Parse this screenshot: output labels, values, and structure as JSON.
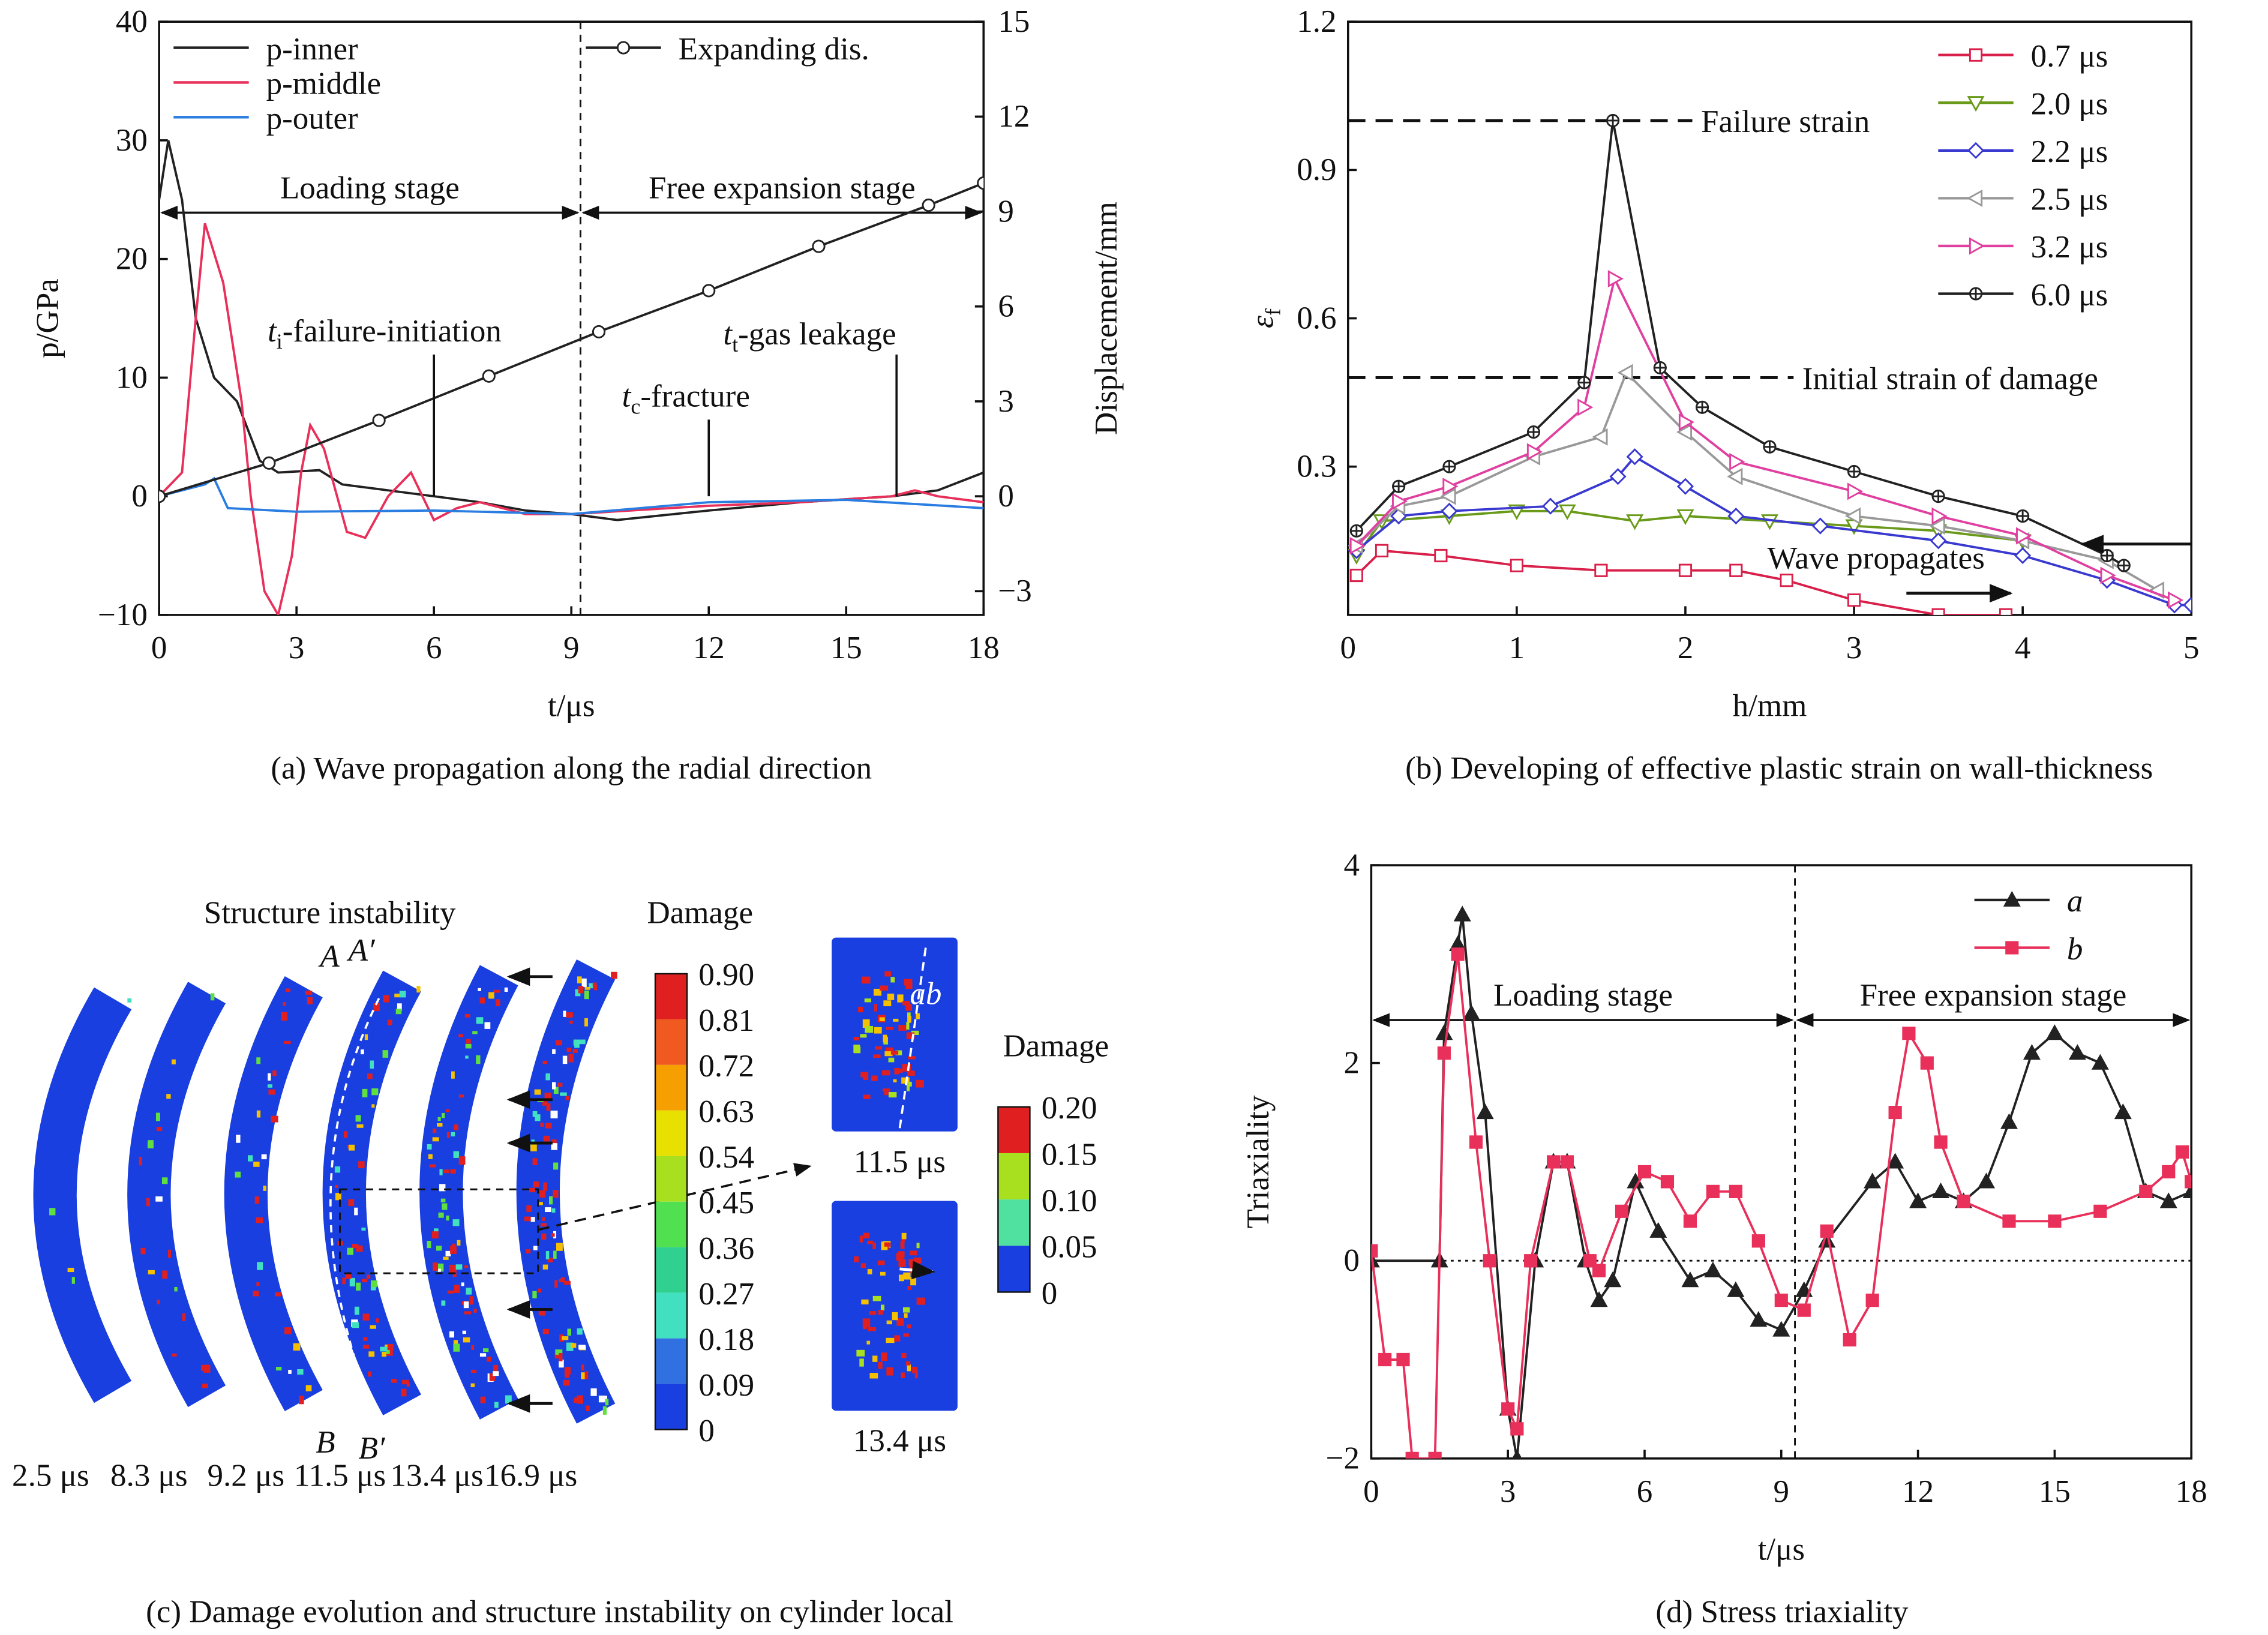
{
  "chart_data": [
    {
      "type": "line",
      "caption": "(a) Wave propagation along the radial direction",
      "xlabel": "t/μs",
      "ylabel": "p/GPa",
      "y2label": "Displacement/mm",
      "xlim": [
        0,
        18
      ],
      "xticks": [
        0,
        3,
        6,
        9,
        12,
        15,
        18
      ],
      "ylim": [
        -10,
        40
      ],
      "yticks": [
        {
          "value": -10,
          "label": "−10"
        },
        0,
        10,
        20,
        30,
        40
      ],
      "y2lim": [
        -3.75,
        15
      ],
      "y2ticks": [
        {
          "value": -3,
          "label": "−3"
        },
        0,
        3,
        6,
        9,
        12,
        15
      ],
      "stage_boundary": 9.2,
      "stages": [
        "Loading stage",
        "Free expansion stage"
      ],
      "annotations": [
        {
          "t": "t",
          "sub": "i",
          "text": "-failure-initiation",
          "at": 6.0
        },
        {
          "t": "t",
          "sub": "c",
          "text": "-fracture",
          "at": 12.0
        },
        {
          "t": "t",
          "sub": "t",
          "text": "-gas leakage",
          "at": 16.1
        }
      ],
      "series": [
        {
          "name": "p-inner",
          "color": "#222222",
          "x": [
            0,
            0.2,
            0.5,
            0.8,
            1.2,
            1.7,
            2.2,
            2.6,
            3.5,
            4,
            5,
            6,
            7,
            8,
            9,
            10,
            12,
            14,
            16,
            17,
            18
          ],
          "values": [
            25,
            30,
            25,
            15,
            10,
            8,
            3,
            2,
            2.2,
            1,
            0.5,
            0,
            -0.5,
            -1.2,
            -1.5,
            -2,
            -1.2,
            -0.5,
            0,
            0.5,
            2
          ]
        },
        {
          "name": "p-middle",
          "color": "#e8305a",
          "x": [
            0,
            0.5,
            0.8,
            1.0,
            1.4,
            1.8,
            2.0,
            2.3,
            2.6,
            2.9,
            3.1,
            3.3,
            3.6,
            4.1,
            4.5,
            5,
            5.5,
            6,
            6.5,
            7,
            8,
            9,
            12,
            14,
            16,
            16.5,
            17,
            18
          ],
          "values": [
            0,
            2,
            15,
            23,
            18,
            8,
            0,
            -8,
            -10,
            -5,
            2,
            6,
            4,
            -3,
            -3.5,
            0,
            2,
            -2,
            -1,
            -0.5,
            -1.5,
            -1.5,
            -0.8,
            -0.5,
            0,
            0.5,
            0,
            -0.5
          ]
        },
        {
          "name": "p-outer",
          "color": "#2a7de1",
          "x": [
            0,
            1,
            1.2,
            1.5,
            3,
            6,
            9,
            12,
            15,
            18
          ],
          "values": [
            0,
            1,
            1.5,
            -1,
            -1.3,
            -1.2,
            -1.5,
            -0.5,
            -0.3,
            -1
          ]
        },
        {
          "name": "Expanding dis.",
          "color": "#222222",
          "axis": "y2",
          "marker": "circle",
          "x": [
            0,
            2.4,
            4.8,
            7.2,
            9.6,
            12,
            14.4,
            16.8,
            18
          ],
          "values": [
            0,
            1.05,
            2.4,
            3.8,
            5.2,
            6.5,
            7.9,
            9.2,
            9.9
          ]
        }
      ]
    },
    {
      "type": "line",
      "caption": "(b) Developing of effective plastic strain on wall-thickness",
      "xlabel": "h/mm",
      "ylabel": "ε",
      "ylabel_sub": "f",
      "xlim": [
        0,
        5
      ],
      "xticks": [
        0,
        1,
        2,
        3,
        4,
        5
      ],
      "ylim": [
        0,
        1.2
      ],
      "yticks": [
        0.3,
        0.6,
        0.9,
        1.2
      ],
      "hlines": [
        {
          "value": 1.0,
          "label": "Failure strain"
        },
        {
          "value": 0.48,
          "label": "Initial strain of damage"
        }
      ],
      "annotations": [
        {
          "text": "Wave propagates"
        }
      ],
      "series": [
        {
          "name": "0.7 μs",
          "color": "#d8204a",
          "marker": "square",
          "x": [
            0.05,
            0.2,
            0.55,
            1.0,
            1.5,
            2.0,
            2.3,
            2.6,
            3.0,
            3.5,
            3.9
          ],
          "values": [
            0.08,
            0.13,
            0.12,
            0.1,
            0.09,
            0.09,
            0.09,
            0.07,
            0.03,
            0.0,
            0.0
          ]
        },
        {
          "name": "2.0 μs",
          "color": "#6a9a1a",
          "marker": "triangle-down",
          "x": [
            0.05,
            0.2,
            0.6,
            1.0,
            1.3,
            1.7,
            2.0,
            2.5,
            3.0,
            3.5,
            4.0
          ],
          "values": [
            0.12,
            0.19,
            0.2,
            0.21,
            0.21,
            0.19,
            0.2,
            0.19,
            0.18,
            0.17,
            0.15
          ]
        },
        {
          "name": "2.2 μs",
          "color": "#3a3ad0",
          "marker": "diamond",
          "x": [
            0.05,
            0.3,
            0.6,
            1.2,
            1.6,
            1.7,
            2.0,
            2.3,
            2.8,
            3.5,
            4.0,
            4.5,
            4.9,
            5.0
          ],
          "values": [
            0.13,
            0.2,
            0.21,
            0.22,
            0.28,
            0.32,
            0.26,
            0.2,
            0.18,
            0.15,
            0.12,
            0.07,
            0.02,
            0.02
          ]
        },
        {
          "name": "2.5 μs",
          "color": "#999999",
          "marker": "triangle-left",
          "x": [
            0.05,
            0.3,
            0.6,
            1.1,
            1.5,
            1.65,
            2.0,
            2.3,
            3.0,
            3.5,
            4.0,
            4.5,
            4.8
          ],
          "values": [
            0.14,
            0.22,
            0.24,
            0.32,
            0.36,
            0.49,
            0.37,
            0.28,
            0.2,
            0.18,
            0.15,
            0.11,
            0.05
          ]
        },
        {
          "name": "3.2 μs",
          "color": "#e040a0",
          "marker": "triangle-right",
          "x": [
            0.05,
            0.3,
            0.6,
            1.1,
            1.4,
            1.58,
            2.0,
            2.3,
            3.0,
            3.5,
            4.0,
            4.5,
            4.9
          ],
          "values": [
            0.14,
            0.23,
            0.26,
            0.33,
            0.42,
            0.68,
            0.39,
            0.31,
            0.25,
            0.2,
            0.16,
            0.08,
            0.03
          ]
        },
        {
          "name": "6.0 μs",
          "color": "#222222",
          "marker": "circle-plus",
          "x": [
            0.05,
            0.3,
            0.6,
            1.1,
            1.4,
            1.57,
            1.85,
            2.1,
            2.5,
            3.0,
            3.5,
            4.0,
            4.5,
            4.6
          ],
          "values": [
            0.17,
            0.26,
            0.3,
            0.37,
            0.47,
            1.0,
            0.5,
            0.42,
            0.34,
            0.29,
            0.24,
            0.2,
            0.12,
            0.1
          ]
        }
      ]
    },
    {
      "type": "line",
      "caption": "(d) Stress triaxiality",
      "xlabel": "t/μs",
      "ylabel": "Triaxiality",
      "xlim": [
        0,
        18
      ],
      "xticks": [
        0,
        3,
        6,
        9,
        12,
        15,
        18
      ],
      "ylim": [
        -2,
        4
      ],
      "yticks": [
        {
          "value": -2,
          "label": "−2"
        },
        0,
        2,
        4
      ],
      "zero_line": true,
      "stage_boundary": 9.3,
      "stages": [
        "Loading stage",
        "Free expansion stage"
      ],
      "series": [
        {
          "name": "a",
          "color": "#222222",
          "marker": "triangle-up",
          "filled": true,
          "x": [
            0,
            1.5,
            1.6,
            1.9,
            2.0,
            2.2,
            2.5,
            3.0,
            3.2,
            3.6,
            4.0,
            4.3,
            4.7,
            5.0,
            5.3,
            5.8,
            6.3,
            7.0,
            7.5,
            8.0,
            8.5,
            9.0,
            9.5,
            10.0,
            11.0,
            11.5,
            12.0,
            12.5,
            13.0,
            13.5,
            14.0,
            14.5,
            15.0,
            15.5,
            16.0,
            16.5,
            17.0,
            17.5,
            18.0
          ],
          "values": [
            0,
            0,
            2.3,
            3.2,
            3.5,
            2.5,
            1.5,
            -1.5,
            -2,
            0,
            1.0,
            1.0,
            0,
            -0.4,
            -0.2,
            0.8,
            0.3,
            -0.2,
            -0.1,
            -0.3,
            -0.6,
            -0.7,
            -0.3,
            0.2,
            0.8,
            1.0,
            0.6,
            0.7,
            0.6,
            0.8,
            1.4,
            2.1,
            2.3,
            2.1,
            2.0,
            1.5,
            0.7,
            0.6,
            0.7
          ]
        },
        {
          "name": "b",
          "color": "#e8305a",
          "marker": "square",
          "filled": true,
          "x": [
            0,
            0.3,
            0.7,
            0.9,
            1.4,
            1.6,
            1.9,
            2.3,
            2.6,
            3.0,
            3.2,
            3.5,
            4.0,
            4.3,
            4.8,
            5.0,
            5.5,
            6.0,
            6.5,
            7.0,
            7.5,
            8.0,
            8.5,
            9.0,
            9.5,
            10.0,
            10.5,
            11.0,
            11.5,
            11.8,
            12.2,
            12.5,
            13.0,
            14.0,
            15.0,
            16.0,
            17.0,
            17.5,
            17.8,
            18.0
          ],
          "values": [
            0.1,
            -1,
            -1,
            -2,
            -2,
            2.1,
            3.1,
            1.2,
            0,
            -1.5,
            -1.7,
            0,
            1.0,
            1.0,
            0,
            -0.1,
            0.5,
            0.9,
            0.8,
            0.4,
            0.7,
            0.7,
            0.2,
            -0.4,
            -0.5,
            0.3,
            -0.8,
            -0.4,
            1.5,
            2.3,
            2.0,
            1.2,
            0.6,
            0.4,
            0.4,
            0.5,
            0.7,
            0.9,
            1.1,
            0.8
          ]
        }
      ]
    }
  ],
  "panel_c": {
    "caption": "(c) Damage evolution and structure instability on cylinder local",
    "title": "Structure instability",
    "labels": [
      "A",
      "A′",
      "B",
      "B′"
    ],
    "times": [
      "2.5 μs",
      "8.3 μs",
      "9.2 μs",
      "11.5 μs",
      "13.4 μs",
      "16.9 μs"
    ],
    "colorbar": {
      "title": "Damage",
      "ticks": [
        "0.90",
        "0.81",
        "0.72",
        "0.63",
        "0.54",
        "0.45",
        "0.36",
        "0.27",
        "0.18",
        "0.09",
        "0"
      ]
    },
    "zoom": {
      "label": "ab",
      "times": [
        "11.5 μs",
        "13.4 μs"
      ]
    },
    "colorbar2": {
      "title": "Damage",
      "ticks": [
        "0.20",
        "0.15",
        "0.10",
        "0.05",
        "0"
      ]
    }
  }
}
